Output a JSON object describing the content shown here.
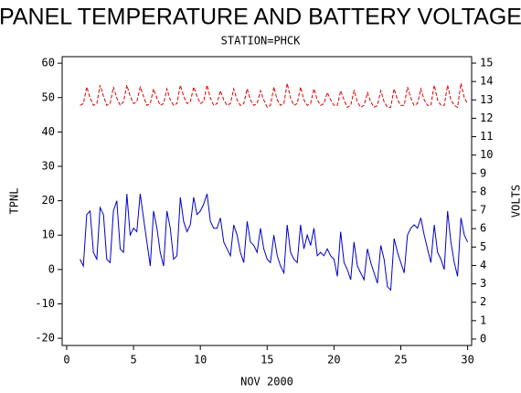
{
  "chart_data": {
    "type": "line",
    "title": "PANEL TEMPERATURE AND BATTERY VOLTAGE",
    "subtitle": "STATION=PHCK",
    "x_label": "NOV 2000",
    "y_label": "TPNL",
    "y2_label": "VOLTS",
    "xlim": [
      -0.34,
      30.3
    ],
    "xticks": [
      0,
      5,
      10,
      15,
      20,
      25,
      30
    ],
    "ylim": [
      -22.1,
      61.9
    ],
    "yticks": [
      -20,
      -10,
      0,
      10,
      20,
      30,
      40,
      50,
      60
    ],
    "y2lim": [
      -0.35,
      15.35
    ],
    "y2ticks": [
      0,
      1,
      2,
      3,
      4,
      5,
      6,
      7,
      8,
      9,
      10,
      11,
      12,
      13,
      14,
      15
    ],
    "x": [
      1,
      1.25,
      1.5,
      1.75,
      2,
      2.25,
      2.5,
      2.75,
      3,
      3.25,
      3.5,
      3.75,
      4,
      4.25,
      4.5,
      4.75,
      5,
      5.25,
      5.5,
      5.75,
      6,
      6.25,
      6.5,
      6.75,
      7,
      7.25,
      7.5,
      7.75,
      8,
      8.25,
      8.5,
      8.75,
      9,
      9.25,
      9.5,
      9.75,
      10,
      10.25,
      10.5,
      10.75,
      11,
      11.25,
      11.5,
      11.75,
      12,
      12.25,
      12.5,
      12.75,
      13,
      13.25,
      13.5,
      13.75,
      14,
      14.25,
      14.5,
      14.75,
      15,
      15.25,
      15.5,
      15.75,
      16,
      16.25,
      16.5,
      16.75,
      17,
      17.25,
      17.5,
      17.75,
      18,
      18.25,
      18.5,
      18.75,
      19,
      19.25,
      19.5,
      19.75,
      20,
      20.25,
      20.5,
      20.75,
      21,
      21.25,
      21.5,
      21.75,
      22,
      22.25,
      22.5,
      22.75,
      23,
      23.25,
      23.5,
      23.75,
      24,
      24.25,
      24.5,
      24.75,
      25,
      25.25,
      25.5,
      25.75,
      26,
      26.25,
      26.5,
      26.75,
      27,
      27.25,
      27.5,
      27.75,
      28,
      28.25,
      28.5,
      28.75,
      29,
      29.25,
      29.5,
      29.75,
      30
    ],
    "series": [
      {
        "name": "TPNL",
        "color": "#0000cc",
        "dash": false,
        "values": [
          3,
          1,
          16,
          17,
          5,
          3,
          18,
          16,
          3,
          2,
          17,
          20,
          6,
          5,
          22,
          10,
          12,
          11,
          22,
          15,
          8,
          1,
          17,
          12,
          5,
          1,
          17,
          12,
          3,
          4,
          21,
          14,
          11,
          13,
          21,
          16,
          17,
          19,
          22,
          14,
          12,
          12,
          15,
          8,
          6,
          4,
          13,
          10,
          5,
          2,
          14,
          8,
          7,
          5,
          12,
          6,
          3,
          2,
          10,
          4,
          1,
          -1,
          13,
          5,
          3,
          2,
          13,
          6,
          10,
          7,
          12,
          4,
          5,
          4,
          6,
          4,
          3,
          -2,
          11,
          2,
          0,
          -3,
          8,
          1,
          -1,
          -3,
          6,
          2,
          -1,
          -4,
          7,
          3,
          -5,
          -6,
          9,
          5,
          2,
          -1,
          10,
          12,
          13,
          12,
          15,
          10,
          6,
          2,
          13,
          5,
          3,
          0,
          17,
          8,
          2,
          -2,
          15,
          10,
          8
        ]
      },
      {
        "name": "VOLTS",
        "color": "#dd0000",
        "dash": true,
        "axis": "y2",
        "values": [
          12.7,
          12.8,
          13.7,
          13.1,
          12.7,
          12.8,
          13.8,
          13.2,
          12.7,
          12.8,
          13.7,
          13.1,
          12.7,
          12.9,
          13.8,
          13.2,
          12.8,
          12.9,
          13.7,
          13.2,
          12.7,
          12.8,
          13.6,
          13.1,
          12.7,
          12.8,
          13.6,
          13.0,
          12.7,
          12.8,
          13.8,
          13.2,
          12.8,
          12.9,
          13.7,
          13.2,
          12.8,
          12.9,
          13.8,
          13.1,
          12.7,
          12.8,
          13.5,
          13.0,
          12.7,
          12.8,
          13.6,
          13.0,
          12.7,
          12.8,
          13.6,
          13.0,
          12.7,
          12.8,
          13.5,
          13.0,
          12.6,
          12.7,
          13.7,
          13.0,
          12.7,
          12.8,
          13.9,
          13.1,
          12.7,
          12.8,
          13.7,
          13.0,
          12.7,
          12.8,
          13.6,
          13.0,
          12.7,
          12.8,
          13.4,
          13.0,
          12.7,
          12.7,
          13.5,
          13.0,
          12.6,
          12.7,
          13.5,
          12.9,
          12.6,
          12.7,
          13.4,
          12.9,
          12.6,
          12.7,
          13.5,
          12.9,
          12.6,
          12.6,
          13.6,
          13.0,
          12.7,
          12.7,
          13.7,
          13.1,
          12.7,
          12.8,
          13.6,
          13.0,
          12.7,
          12.7,
          13.8,
          13.0,
          12.7,
          12.7,
          13.8,
          13.0,
          12.7,
          12.6,
          13.9,
          13.1,
          12.8
        ]
      }
    ]
  }
}
